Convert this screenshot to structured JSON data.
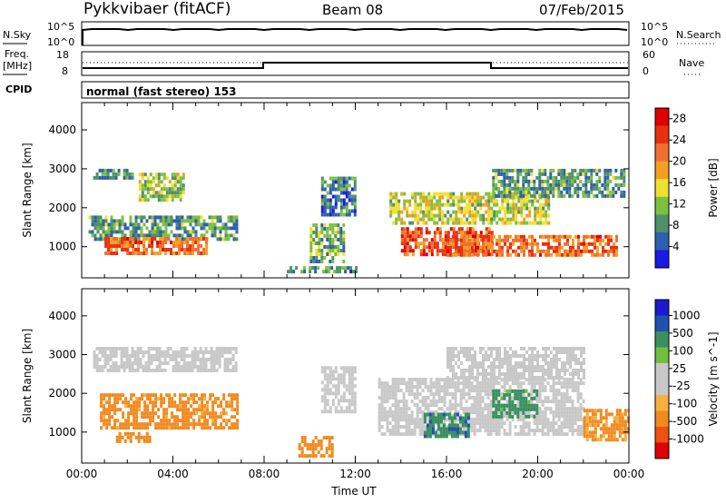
{
  "header": {
    "station": "Pykkvibaer (fitACF)",
    "beam": "Beam 08",
    "date": "07/Feb/2015"
  },
  "panel_labels": {
    "nsky": "N.Sky",
    "nsearch": "N.Search",
    "freq_line1": "Freq.",
    "freq_line2": "[MHz]",
    "nave": "Nave",
    "cpid": "CPID",
    "cpid_value": "normal (fast stereo) 153"
  },
  "noise_axis": {
    "left_ticks": [
      "10^5",
      "10^0"
    ],
    "right_ticks": [
      "10^5",
      "10^0"
    ]
  },
  "freq_axis": {
    "left_ticks": [
      "18",
      "8"
    ],
    "right_ticks": [
      "60",
      "0"
    ]
  },
  "colors": {
    "power_scale": [
      "#1a1ae6",
      "#2e5fb0",
      "#4f8f6a",
      "#7cc040",
      "#f0e030",
      "#f2a020",
      "#f07030",
      "#e83010",
      "#e00000"
    ],
    "velocity_scale": [
      "#e00000",
      "#f05010",
      "#f08a20",
      "#f5b040",
      "#c8c8c8",
      "#c8c8c8",
      "#70c040",
      "#3a9060",
      "#2050b0",
      "#1a1ad0"
    ]
  },
  "chart_data": [
    {
      "type": "heatmap",
      "title": "Power",
      "xlabel": "Time UT",
      "ylabel": "Slant Range [km]",
      "xlim": [
        "00:00",
        "24:00"
      ],
      "ylim": [
        200,
        4700
      ],
      "x_ticks": [
        "00:00",
        "04:00",
        "08:00",
        "12:00",
        "16:00",
        "20:00",
        "00:00"
      ],
      "y_ticks": [
        "1000",
        "2000",
        "3000",
        "4000"
      ],
      "colorbar": {
        "label": "Power [dB]",
        "ticks": [
          "4",
          "8",
          "12",
          "16",
          "20",
          "24",
          "28"
        ],
        "range": [
          0,
          30
        ]
      },
      "regions": [
        {
          "t": [
            0.5,
            2.2
          ],
          "r": [
            2750,
            3000
          ],
          "v": 8
        },
        {
          "t": [
            2.5,
            4.5
          ],
          "r": [
            2200,
            2900
          ],
          "v": 13
        },
        {
          "t": [
            0.3,
            6.8
          ],
          "r": [
            1200,
            1800
          ],
          "v": 9
        },
        {
          "t": [
            1.0,
            5.5
          ],
          "r": [
            850,
            1250
          ],
          "v": 22
        },
        {
          "t": [
            10.0,
            11.5
          ],
          "r": [
            600,
            1600
          ],
          "v": 10
        },
        {
          "t": [
            10.5,
            12.0
          ],
          "r": [
            1800,
            2800
          ],
          "v": 7
        },
        {
          "t": [
            13.5,
            20.5
          ],
          "r": [
            1600,
            2400
          ],
          "v": 14
        },
        {
          "t": [
            14.0,
            18.0
          ],
          "r": [
            800,
            1500
          ],
          "v": 24
        },
        {
          "t": [
            16.0,
            23.5
          ],
          "r": [
            800,
            1300
          ],
          "v": 22
        },
        {
          "t": [
            18.0,
            23.8
          ],
          "r": [
            2300,
            3000
          ],
          "v": 9
        },
        {
          "t": [
            9.0,
            12.0
          ],
          "r": [
            400,
            500
          ],
          "v": 8
        }
      ]
    },
    {
      "type": "heatmap",
      "title": "Velocity",
      "xlabel": "Time UT",
      "ylabel": "Slant Range [km]",
      "xlim": [
        "00:00",
        "24:00"
      ],
      "ylim": [
        200,
        4700
      ],
      "x_ticks": [
        "00:00",
        "04:00",
        "08:00",
        "12:00",
        "16:00",
        "20:00",
        "00:00"
      ],
      "y_ticks": [
        "1000",
        "2000",
        "3000",
        "4000"
      ],
      "colorbar": {
        "label": "Velocity [m s^-1]",
        "ticks": [
          "1000",
          "500",
          "100",
          "25",
          "-25",
          "-100",
          "-500",
          "-1000"
        ]
      },
      "regions": [
        {
          "t": [
            0.5,
            6.8
          ],
          "r": [
            2600,
            3200
          ],
          "v": 0
        },
        {
          "t": [
            0.8,
            6.8
          ],
          "r": [
            1100,
            2000
          ],
          "v": -150
        },
        {
          "t": [
            1.5,
            3.0
          ],
          "r": [
            800,
            1000
          ],
          "v": -300
        },
        {
          "t": [
            9.5,
            11.0
          ],
          "r": [
            400,
            900
          ],
          "v": -200
        },
        {
          "t": [
            10.5,
            12.0
          ],
          "r": [
            1500,
            2700
          ],
          "v": 0
        },
        {
          "t": [
            13.0,
            22.0
          ],
          "r": [
            900,
            2400
          ],
          "v": 0
        },
        {
          "t": [
            15.0,
            17.0
          ],
          "r": [
            900,
            1500
          ],
          "v": 400
        },
        {
          "t": [
            18.0,
            20.0
          ],
          "r": [
            1400,
            2100
          ],
          "v": 150
        },
        {
          "t": [
            16.0,
            22.0
          ],
          "r": [
            2400,
            3200
          ],
          "v": 0
        },
        {
          "t": [
            22.0,
            24.0
          ],
          "r": [
            800,
            1600
          ],
          "v": -120
        }
      ]
    }
  ]
}
